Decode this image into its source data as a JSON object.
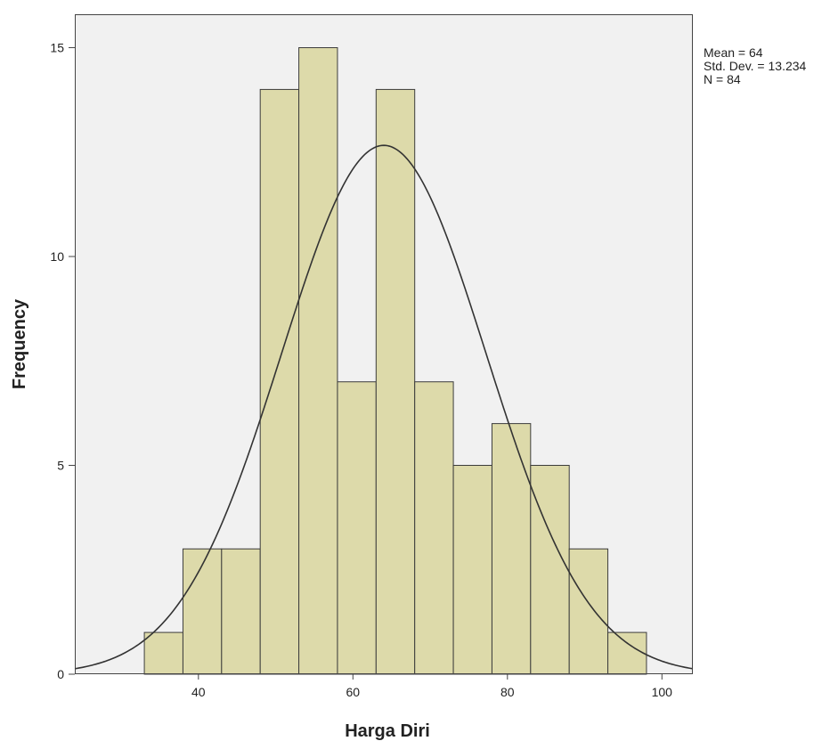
{
  "chart_data": {
    "type": "bar",
    "subtype": "histogram",
    "xlabel": "Harga Diri",
    "ylabel": "Frequency",
    "xlim": [
      24,
      104
    ],
    "ylim": [
      0,
      15.8
    ],
    "x_ticks": [
      40,
      60,
      80,
      100
    ],
    "y_ticks": [
      0,
      5,
      10,
      15
    ],
    "bin_edges": [
      33,
      38,
      43,
      48,
      53,
      58,
      63,
      68,
      73,
      78,
      83,
      88,
      93,
      98
    ],
    "counts": [
      1,
      3,
      3,
      14,
      15,
      7,
      14,
      7,
      5,
      6,
      5,
      3,
      1
    ],
    "normal_curve": {
      "mean": 64,
      "std": 13.234,
      "n": 84
    },
    "stats_labels": [
      "Mean = 64",
      "Std. Dev. = 13.234",
      "N = 84"
    ],
    "colors": {
      "bar_fill": "#dddaaa",
      "bar_stroke": "#3c3c3c",
      "plot_background": "#f1f1f1",
      "curve": "#333333"
    },
    "grid": false,
    "legend": "none"
  }
}
